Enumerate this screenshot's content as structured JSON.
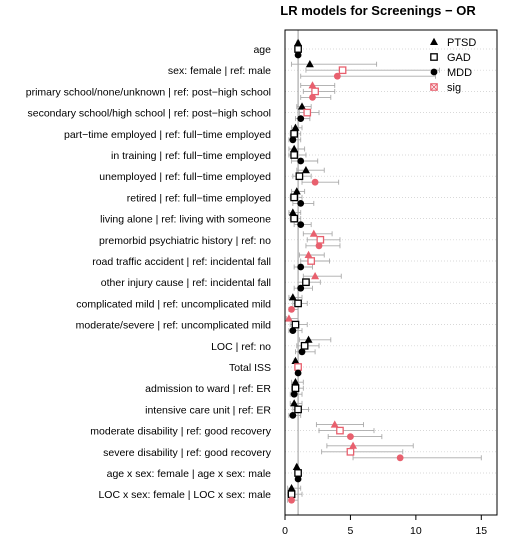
{
  "chart_data": {
    "type": "scatter",
    "title": "LR models for Screenings − OR",
    "xlim": [
      0,
      16.2
    ],
    "xticks": [
      0,
      5,
      10,
      15
    ],
    "reference_line": 1,
    "colors": {
      "normal": "#000000",
      "sig": "#e8606e",
      "ci": "#aaaaaa",
      "grid": "#cccccc",
      "ref": "#999999"
    },
    "legend": {
      "placement": "top-right",
      "entries": [
        {
          "label": "PTSD",
          "marker": "triangle"
        },
        {
          "label": "GAD",
          "marker": "square"
        },
        {
          "label": "MDD",
          "marker": "circle"
        },
        {
          "label": "sig",
          "marker": "sig"
        }
      ]
    },
    "categories": [
      "age",
      "sex: female | ref: male",
      "primary school/none/unknown | ref: post−high school",
      "secondary school/high school | ref: post−high school",
      "part−time employed | ref: full−time employed",
      "in training | ref: full−time employed",
      "unemployed | ref: full−time employed",
      "retired | ref: full−time employed",
      "living alone | ref: living with someone",
      "premorbid psychiatric history | ref: no",
      "road traffic accident | ref: incidental fall",
      "other injury cause | ref: incidental fall",
      "complicated mild | ref: uncomplicated mild",
      "moderate/severe | ref: uncomplicated mild",
      "LOC | ref: no",
      "Total ISS",
      "admission to ward | ref: ER",
      "intensive care unit | ref: ER",
      "moderate disability | ref: good recovery",
      "severe disability | ref: good recovery",
      "age x sex: female | age x sex: male",
      "LOC x sex: female | LOC x sex: male"
    ],
    "series": [
      {
        "name": "PTSD",
        "marker": "triangle",
        "values": [
          1.0,
          1.9,
          2.1,
          1.3,
          0.8,
          0.7,
          1.6,
          0.9,
          0.6,
          2.2,
          1.8,
          2.3,
          0.6,
          0.3,
          1.8,
          0.8,
          0.8,
          0.7,
          3.8,
          5.2,
          0.9,
          0.5
        ],
        "ci_low": [
          0.9,
          0.5,
          1.2,
          0.9,
          0.5,
          0.3,
          0.9,
          0.5,
          0.3,
          1.4,
          1.1,
          1.4,
          0.3,
          0.1,
          1.1,
          0.7,
          0.5,
          0.4,
          2.4,
          3.2,
          0.8,
          0.2
        ],
        "ci_high": [
          1.1,
          7.0,
          3.8,
          2.0,
          1.3,
          1.5,
          3.0,
          1.5,
          1.2,
          3.6,
          3.0,
          4.3,
          1.3,
          1.0,
          3.5,
          1.0,
          1.4,
          1.3,
          6.0,
          9.8,
          1.0,
          1.2
        ],
        "sig": [
          false,
          false,
          true,
          false,
          false,
          false,
          false,
          false,
          false,
          true,
          true,
          true,
          false,
          true,
          false,
          false,
          false,
          false,
          true,
          true,
          false,
          false
        ]
      },
      {
        "name": "GAD",
        "marker": "square",
        "values": [
          1.0,
          4.4,
          2.3,
          1.7,
          0.7,
          0.7,
          1.1,
          0.7,
          0.7,
          2.7,
          2.0,
          1.6,
          1.0,
          0.8,
          1.5,
          1.0,
          0.8,
          1.0,
          4.2,
          5.0,
          1.0,
          0.5
        ],
        "ci_low": [
          0.9,
          1.6,
          1.4,
          1.1,
          0.4,
          0.3,
          0.6,
          0.4,
          0.4,
          1.7,
          1.2,
          1.0,
          0.6,
          0.4,
          0.9,
          0.9,
          0.5,
          0.6,
          2.6,
          2.8,
          0.9,
          0.2
        ],
        "ci_high": [
          1.1,
          11.8,
          3.8,
          2.6,
          1.2,
          1.6,
          2.0,
          1.3,
          1.2,
          4.2,
          3.4,
          2.7,
          1.7,
          1.7,
          2.6,
          1.1,
          1.4,
          1.8,
          6.8,
          9.0,
          1.1,
          1.3
        ],
        "sig": [
          false,
          true,
          true,
          true,
          false,
          false,
          false,
          false,
          false,
          true,
          true,
          false,
          false,
          false,
          false,
          true,
          false,
          false,
          true,
          true,
          false,
          false
        ]
      },
      {
        "name": "MDD",
        "marker": "circle",
        "values": [
          1.0,
          4.0,
          2.1,
          1.2,
          0.6,
          1.2,
          2.3,
          1.2,
          1.2,
          2.6,
          1.2,
          1.2,
          0.5,
          0.6,
          1.3,
          1.0,
          0.7,
          0.6,
          5.0,
          8.8,
          1.0,
          0.5
        ],
        "ci_low": [
          0.9,
          1.2,
          1.2,
          0.8,
          0.3,
          0.5,
          1.3,
          0.6,
          0.7,
          1.6,
          0.7,
          0.7,
          0.3,
          0.3,
          0.8,
          0.9,
          0.4,
          0.3,
          3.3,
          5.2,
          0.9,
          0.2
        ],
        "ci_high": [
          1.1,
          11.5,
          3.5,
          1.9,
          1.2,
          2.5,
          4.1,
          2.2,
          2.0,
          4.2,
          2.1,
          2.1,
          1.0,
          1.3,
          2.3,
          1.1,
          1.3,
          1.2,
          7.4,
          15.0,
          1.1,
          1.0
        ],
        "sig": [
          false,
          true,
          true,
          false,
          false,
          false,
          true,
          false,
          false,
          true,
          false,
          false,
          true,
          false,
          false,
          false,
          false,
          false,
          true,
          true,
          false,
          true
        ]
      }
    ]
  }
}
